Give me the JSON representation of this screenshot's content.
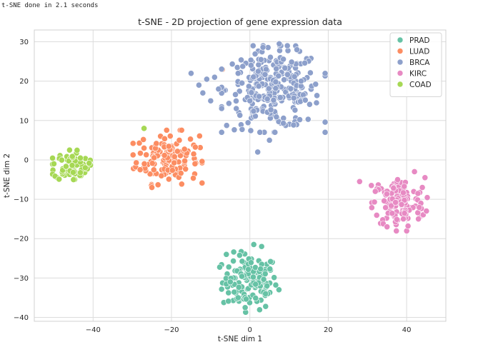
{
  "console": {
    "output_line": "t-SNE done in 2.1 seconds"
  },
  "chart_data": {
    "type": "scatter",
    "title": "t-SNE - 2D projection of gene expression data",
    "xlabel": "t-SNE dim 1",
    "ylabel": "t-SNE dim 2",
    "xlim": [
      -55,
      50
    ],
    "ylim": [
      -41,
      33
    ],
    "xticks": [
      -40,
      -20,
      0,
      20,
      40
    ],
    "yticks": [
      -40,
      -30,
      -20,
      -10,
      0,
      10,
      20,
      30
    ],
    "grid": true,
    "legend_position": "top-right",
    "series": [
      {
        "name": "PRAD",
        "color": "#66c2a5",
        "center": [
          0,
          -31
        ],
        "spread": [
          3.5,
          3.5
        ],
        "count": 136,
        "points": [
          [
            -6,
            -24
          ],
          [
            1,
            -21.5
          ],
          [
            3,
            -22
          ],
          [
            -3,
            -35
          ],
          [
            -5,
            -31
          ],
          [
            4,
            -34
          ]
        ]
      },
      {
        "name": "LUAD",
        "color": "#fc8d62",
        "center": [
          -21,
          0.5
        ],
        "spread": [
          4,
          3.2
        ],
        "count": 140,
        "points": [
          [
            -28,
            -2.5
          ],
          [
            -25,
            -7
          ],
          [
            -27,
            3
          ],
          [
            -18,
            5
          ],
          [
            -14,
            -1
          ],
          [
            -7,
            23
          ]
        ]
      },
      {
        "name": "BRCA",
        "color": "#8da0cb",
        "center": [
          6,
          18
        ],
        "spread": [
          6,
          5
        ],
        "count": 300,
        "points": [
          [
            7.5,
            29.5
          ],
          [
            12,
            28
          ],
          [
            17,
            14.5
          ],
          [
            -3,
            22
          ],
          [
            0,
            15
          ],
          [
            5,
            5
          ],
          [
            2,
            2
          ],
          [
            -15,
            22
          ],
          [
            -12,
            17
          ],
          [
            -10,
            15
          ],
          [
            -8,
            18
          ],
          [
            -11,
            20.5
          ],
          [
            -13,
            19
          ],
          [
            -9,
            21
          ]
        ]
      },
      {
        "name": "KIRC",
        "color": "#e78ac3",
        "center": [
          38,
          -11
        ],
        "spread": [
          3.3,
          3.2
        ],
        "count": 136,
        "points": [
          [
            28,
            -5.5
          ],
          [
            31,
            -6.5
          ],
          [
            32,
            -8
          ],
          [
            42,
            -3
          ],
          [
            44,
            -7
          ],
          [
            35,
            -17
          ],
          [
            43,
            -15
          ]
        ]
      },
      {
        "name": "COAD",
        "color": "#a6d854",
        "center": [
          -45.5,
          -1.5
        ],
        "spread": [
          2.2,
          1.8
        ],
        "count": 86,
        "points": [
          [
            -50,
            -1
          ],
          [
            -42,
            -2
          ],
          [
            -46,
            2.5
          ],
          [
            -45,
            -5
          ],
          [
            -27,
            8
          ]
        ]
      }
    ]
  }
}
